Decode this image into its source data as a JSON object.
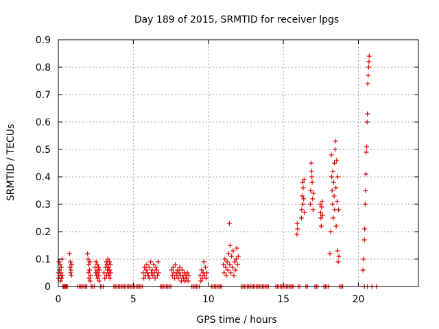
{
  "chart_data": {
    "type": "scatter",
    "title": "Day 189 of 2015, SRMTID for receiver lpgs",
    "xlabel": "GPS time / hours",
    "ylabel": "SRMTID / TECUs",
    "xlim": [
      0,
      24
    ],
    "ylim": [
      0,
      0.9
    ],
    "xticks": [
      0,
      5,
      10,
      15,
      20
    ],
    "yticks": [
      0,
      0.1,
      0.2,
      0.3,
      0.4,
      0.5,
      0.6,
      0.7,
      0.8,
      0.9
    ],
    "grid": true,
    "marker": "+",
    "color": "#e00000",
    "series": [
      {
        "name": "SRMTID",
        "points": [
          [
            0.0,
            0.05
          ],
          [
            0.02,
            0.03
          ],
          [
            0.05,
            0.09
          ],
          [
            0.07,
            0.06
          ],
          [
            0.1,
            0.04
          ],
          [
            0.12,
            0.08
          ],
          [
            0.15,
            0.02
          ],
          [
            0.18,
            0.05
          ],
          [
            0.2,
            0.07
          ],
          [
            0.22,
            0.03
          ],
          [
            0.25,
            0.1
          ],
          [
            0.28,
            0.04
          ],
          [
            0.3,
            0.0
          ],
          [
            0.35,
            0.0
          ],
          [
            0.4,
            0.0
          ],
          [
            0.45,
            0.0
          ],
          [
            0.5,
            0.0
          ],
          [
            0.55,
            0.0
          ],
          [
            0.6,
            0.0
          ],
          [
            0.75,
            0.12
          ],
          [
            0.78,
            0.07
          ],
          [
            0.8,
            0.09
          ],
          [
            0.82,
            0.05
          ],
          [
            0.85,
            0.06
          ],
          [
            0.87,
            0.04
          ],
          [
            0.9,
            0.08
          ],
          [
            1.3,
            0.0
          ],
          [
            1.4,
            0.0
          ],
          [
            1.5,
            0.0
          ],
          [
            1.6,
            0.0
          ],
          [
            1.7,
            0.0
          ],
          [
            1.8,
            0.0
          ],
          [
            1.9,
            0.0
          ],
          [
            1.95,
            0.12
          ],
          [
            1.98,
            0.1
          ],
          [
            2.0,
            0.05
          ],
          [
            2.02,
            0.08
          ],
          [
            2.05,
            0.03
          ],
          [
            2.08,
            0.06
          ],
          [
            2.1,
            0.09
          ],
          [
            2.12,
            0.02
          ],
          [
            2.15,
            0.04
          ],
          [
            2.2,
            0.0
          ],
          [
            2.3,
            0.0
          ],
          [
            2.4,
            0.0
          ],
          [
            2.45,
            0.07
          ],
          [
            2.5,
            0.05
          ],
          [
            2.52,
            0.09
          ],
          [
            2.55,
            0.04
          ],
          [
            2.58,
            0.06
          ],
          [
            2.6,
            0.08
          ],
          [
            2.62,
            0.03
          ],
          [
            2.65,
            0.05
          ],
          [
            2.68,
            0.07
          ],
          [
            2.7,
            0.04
          ],
          [
            2.72,
            0.02
          ],
          [
            2.75,
            0.06
          ],
          [
            2.8,
            0.0
          ],
          [
            2.9,
            0.0
          ],
          [
            3.0,
            0.0
          ],
          [
            3.05,
            0.05
          ],
          [
            3.1,
            0.03
          ],
          [
            3.15,
            0.07
          ],
          [
            3.2,
            0.09
          ],
          [
            3.22,
            0.04
          ],
          [
            3.25,
            0.08
          ],
          [
            3.28,
            0.06
          ],
          [
            3.3,
            0.1
          ],
          [
            3.32,
            0.05
          ],
          [
            3.35,
            0.07
          ],
          [
            3.38,
            0.04
          ],
          [
            3.4,
            0.09
          ],
          [
            3.42,
            0.06
          ],
          [
            3.45,
            0.03
          ],
          [
            3.48,
            0.08
          ],
          [
            3.5,
            0.05
          ],
          [
            3.7,
            0.0
          ],
          [
            3.8,
            0.0
          ],
          [
            3.9,
            0.0
          ],
          [
            4.0,
            0.0
          ],
          [
            4.1,
            0.0
          ],
          [
            4.2,
            0.0
          ],
          [
            4.3,
            0.0
          ],
          [
            4.4,
            0.0
          ],
          [
            4.5,
            0.0
          ],
          [
            4.6,
            0.0
          ],
          [
            4.7,
            0.0
          ],
          [
            4.8,
            0.0
          ],
          [
            4.9,
            0.0
          ],
          [
            5.0,
            0.0
          ],
          [
            5.1,
            0.0
          ],
          [
            5.2,
            0.0
          ],
          [
            5.3,
            0.0
          ],
          [
            5.4,
            0.0
          ],
          [
            5.5,
            0.0
          ],
          [
            5.6,
            0.0
          ],
          [
            5.65,
            0.05
          ],
          [
            5.7,
            0.03
          ],
          [
            5.75,
            0.07
          ],
          [
            5.8,
            0.04
          ],
          [
            5.85,
            0.06
          ],
          [
            5.9,
            0.08
          ],
          [
            5.95,
            0.05
          ],
          [
            6.0,
            0.04
          ],
          [
            6.05,
            0.07
          ],
          [
            6.1,
            0.03
          ],
          [
            6.15,
            0.09
          ],
          [
            6.2,
            0.05
          ],
          [
            6.25,
            0.06
          ],
          [
            6.3,
            0.04
          ],
          [
            6.35,
            0.08
          ],
          [
            6.4,
            0.05
          ],
          [
            6.45,
            0.03
          ],
          [
            6.5,
            0.07
          ],
          [
            6.55,
            0.06
          ],
          [
            6.6,
            0.04
          ],
          [
            6.65,
            0.09
          ],
          [
            6.7,
            0.05
          ],
          [
            6.8,
            0.0
          ],
          [
            6.9,
            0.0
          ],
          [
            7.0,
            0.0
          ],
          [
            7.1,
            0.0
          ],
          [
            7.2,
            0.0
          ],
          [
            7.3,
            0.0
          ],
          [
            7.4,
            0.0
          ],
          [
            7.5,
            0.0
          ],
          [
            7.55,
            0.06
          ],
          [
            7.6,
            0.04
          ],
          [
            7.65,
            0.07
          ],
          [
            7.7,
            0.05
          ],
          [
            7.75,
            0.03
          ],
          [
            7.8,
            0.08
          ],
          [
            7.85,
            0.05
          ],
          [
            7.9,
            0.04
          ],
          [
            7.95,
            0.06
          ],
          [
            8.0,
            0.03
          ],
          [
            8.05,
            0.05
          ],
          [
            8.1,
            0.07
          ],
          [
            8.15,
            0.04
          ],
          [
            8.2,
            0.02
          ],
          [
            8.25,
            0.06
          ],
          [
            8.3,
            0.04
          ],
          [
            8.35,
            0.03
          ],
          [
            8.4,
            0.05
          ],
          [
            8.45,
            0.02
          ],
          [
            8.5,
            0.04
          ],
          [
            8.55,
            0.03
          ],
          [
            8.6,
            0.05
          ],
          [
            8.65,
            0.02
          ],
          [
            8.7,
            0.04
          ],
          [
            8.9,
            0.0
          ],
          [
            9.0,
            0.0
          ],
          [
            9.1,
            0.0
          ],
          [
            9.2,
            0.0
          ],
          [
            9.3,
            0.0
          ],
          [
            9.4,
            0.0
          ],
          [
            9.45,
            0.04
          ],
          [
            9.5,
            0.02
          ],
          [
            9.55,
            0.06
          ],
          [
            9.6,
            0.03
          ],
          [
            9.65,
            0.05
          ],
          [
            9.7,
            0.09
          ],
          [
            9.75,
            0.04
          ],
          [
            9.8,
            0.07
          ],
          [
            9.85,
            0.03
          ],
          [
            9.9,
            0.05
          ],
          [
            10.2,
            0.0
          ],
          [
            10.3,
            0.0
          ],
          [
            10.4,
            0.0
          ],
          [
            10.5,
            0.0
          ],
          [
            10.6,
            0.0
          ],
          [
            10.7,
            0.0
          ],
          [
            10.8,
            0.0
          ],
          [
            10.9,
            0.0
          ],
          [
            11.0,
            0.08
          ],
          [
            11.05,
            0.05
          ],
          [
            11.1,
            0.1
          ],
          [
            11.15,
            0.07
          ],
          [
            11.2,
            0.04
          ],
          [
            11.25,
            0.09
          ],
          [
            11.3,
            0.06
          ],
          [
            11.35,
            0.12
          ],
          [
            11.4,
            0.23
          ],
          [
            11.42,
            0.08
          ],
          [
            11.45,
            0.15
          ],
          [
            11.5,
            0.05
          ],
          [
            11.55,
            0.11
          ],
          [
            11.6,
            0.07
          ],
          [
            11.65,
            0.13
          ],
          [
            11.7,
            0.04
          ],
          [
            11.75,
            0.09
          ],
          [
            11.8,
            0.06
          ],
          [
            11.85,
            0.1
          ],
          [
            11.9,
            0.14
          ],
          [
            11.95,
            0.08
          ],
          [
            12.0,
            0.11
          ],
          [
            12.2,
            0.0
          ],
          [
            12.3,
            0.0
          ],
          [
            12.4,
            0.0
          ],
          [
            12.5,
            0.0
          ],
          [
            12.6,
            0.0
          ],
          [
            12.7,
            0.0
          ],
          [
            12.8,
            0.0
          ],
          [
            12.9,
            0.0
          ],
          [
            13.0,
            0.0
          ],
          [
            13.1,
            0.0
          ],
          [
            13.2,
            0.0
          ],
          [
            13.3,
            0.0
          ],
          [
            13.4,
            0.0
          ],
          [
            13.5,
            0.0
          ],
          [
            13.6,
            0.0
          ],
          [
            13.7,
            0.0
          ],
          [
            13.8,
            0.0
          ],
          [
            13.9,
            0.0
          ],
          [
            14.0,
            0.0
          ],
          [
            14.5,
            0.0
          ],
          [
            14.6,
            0.0
          ],
          [
            14.7,
            0.0
          ],
          [
            14.8,
            0.0
          ],
          [
            14.9,
            0.0
          ],
          [
            15.0,
            0.0
          ],
          [
            15.1,
            0.0
          ],
          [
            15.2,
            0.0
          ],
          [
            15.3,
            0.0
          ],
          [
            15.4,
            0.0
          ],
          [
            15.5,
            0.0
          ],
          [
            15.6,
            0.0
          ],
          [
            15.7,
            0.0
          ],
          [
            15.9,
            0.19
          ],
          [
            15.92,
            0.23
          ],
          [
            15.95,
            0.21
          ],
          [
            16.0,
            0.0
          ],
          [
            16.1,
            0.0
          ],
          [
            16.2,
            0.25
          ],
          [
            16.22,
            0.28
          ],
          [
            16.25,
            0.33
          ],
          [
            16.28,
            0.38
          ],
          [
            16.3,
            0.3
          ],
          [
            16.32,
            0.36
          ],
          [
            16.35,
            0.32
          ],
          [
            16.38,
            0.39
          ],
          [
            16.4,
            0.27
          ],
          [
            16.5,
            0.0
          ],
          [
            16.6,
            0.0
          ],
          [
            16.8,
            0.3
          ],
          [
            16.82,
            0.35
          ],
          [
            16.85,
            0.45
          ],
          [
            16.88,
            0.42
          ],
          [
            16.9,
            0.4
          ],
          [
            16.92,
            0.38
          ],
          [
            16.95,
            0.32
          ],
          [
            16.98,
            0.28
          ],
          [
            17.0,
            0.34
          ],
          [
            17.1,
            0.0
          ],
          [
            17.2,
            0.0
          ],
          [
            17.3,
            0.0
          ],
          [
            17.45,
            0.3
          ],
          [
            17.48,
            0.27
          ],
          [
            17.5,
            0.25
          ],
          [
            17.52,
            0.22
          ],
          [
            17.55,
            0.29
          ],
          [
            17.58,
            0.31
          ],
          [
            17.6,
            0.26
          ],
          [
            17.7,
            0.0
          ],
          [
            17.8,
            0.0
          ],
          [
            17.9,
            0.0
          ],
          [
            18.0,
            0.0
          ],
          [
            18.1,
            0.12
          ],
          [
            18.15,
            0.2
          ],
          [
            18.2,
            0.48
          ],
          [
            18.22,
            0.4
          ],
          [
            18.25,
            0.35
          ],
          [
            18.28,
            0.3
          ],
          [
            18.3,
            0.42
          ],
          [
            18.32,
            0.25
          ],
          [
            18.35,
            0.38
          ],
          [
            18.38,
            0.33
          ],
          [
            18.4,
            0.45
          ],
          [
            18.42,
            0.28
          ],
          [
            18.45,
            0.5
          ],
          [
            18.47,
            0.53
          ],
          [
            18.5,
            0.36
          ],
          [
            18.52,
            0.22
          ],
          [
            18.55,
            0.46
          ],
          [
            18.58,
            0.31
          ],
          [
            18.6,
            0.13
          ],
          [
            18.62,
            0.4
          ],
          [
            18.65,
            0.09
          ],
          [
            18.68,
            0.28
          ],
          [
            18.7,
            0.11
          ],
          [
            18.75,
            0.0
          ],
          [
            18.85,
            0.0
          ],
          [
            18.95,
            0.0
          ],
          [
            20.3,
            0.06
          ],
          [
            20.35,
            0.1
          ],
          [
            20.4,
            0.17
          ],
          [
            20.42,
            0.21
          ],
          [
            20.45,
            0.3
          ],
          [
            20.48,
            0.35
          ],
          [
            20.5,
            0.41
          ],
          [
            20.52,
            0.49
          ],
          [
            20.55,
            0.51
          ],
          [
            20.58,
            0.6
          ],
          [
            20.6,
            0.63
          ],
          [
            20.62,
            0.74
          ],
          [
            20.65,
            0.77
          ],
          [
            20.68,
            0.8
          ],
          [
            20.7,
            0.82
          ],
          [
            20.72,
            0.84
          ],
          [
            20.4,
            0.0
          ],
          [
            20.6,
            0.0
          ],
          [
            20.9,
            0.0
          ],
          [
            21.2,
            0.0
          ]
        ]
      }
    ]
  }
}
